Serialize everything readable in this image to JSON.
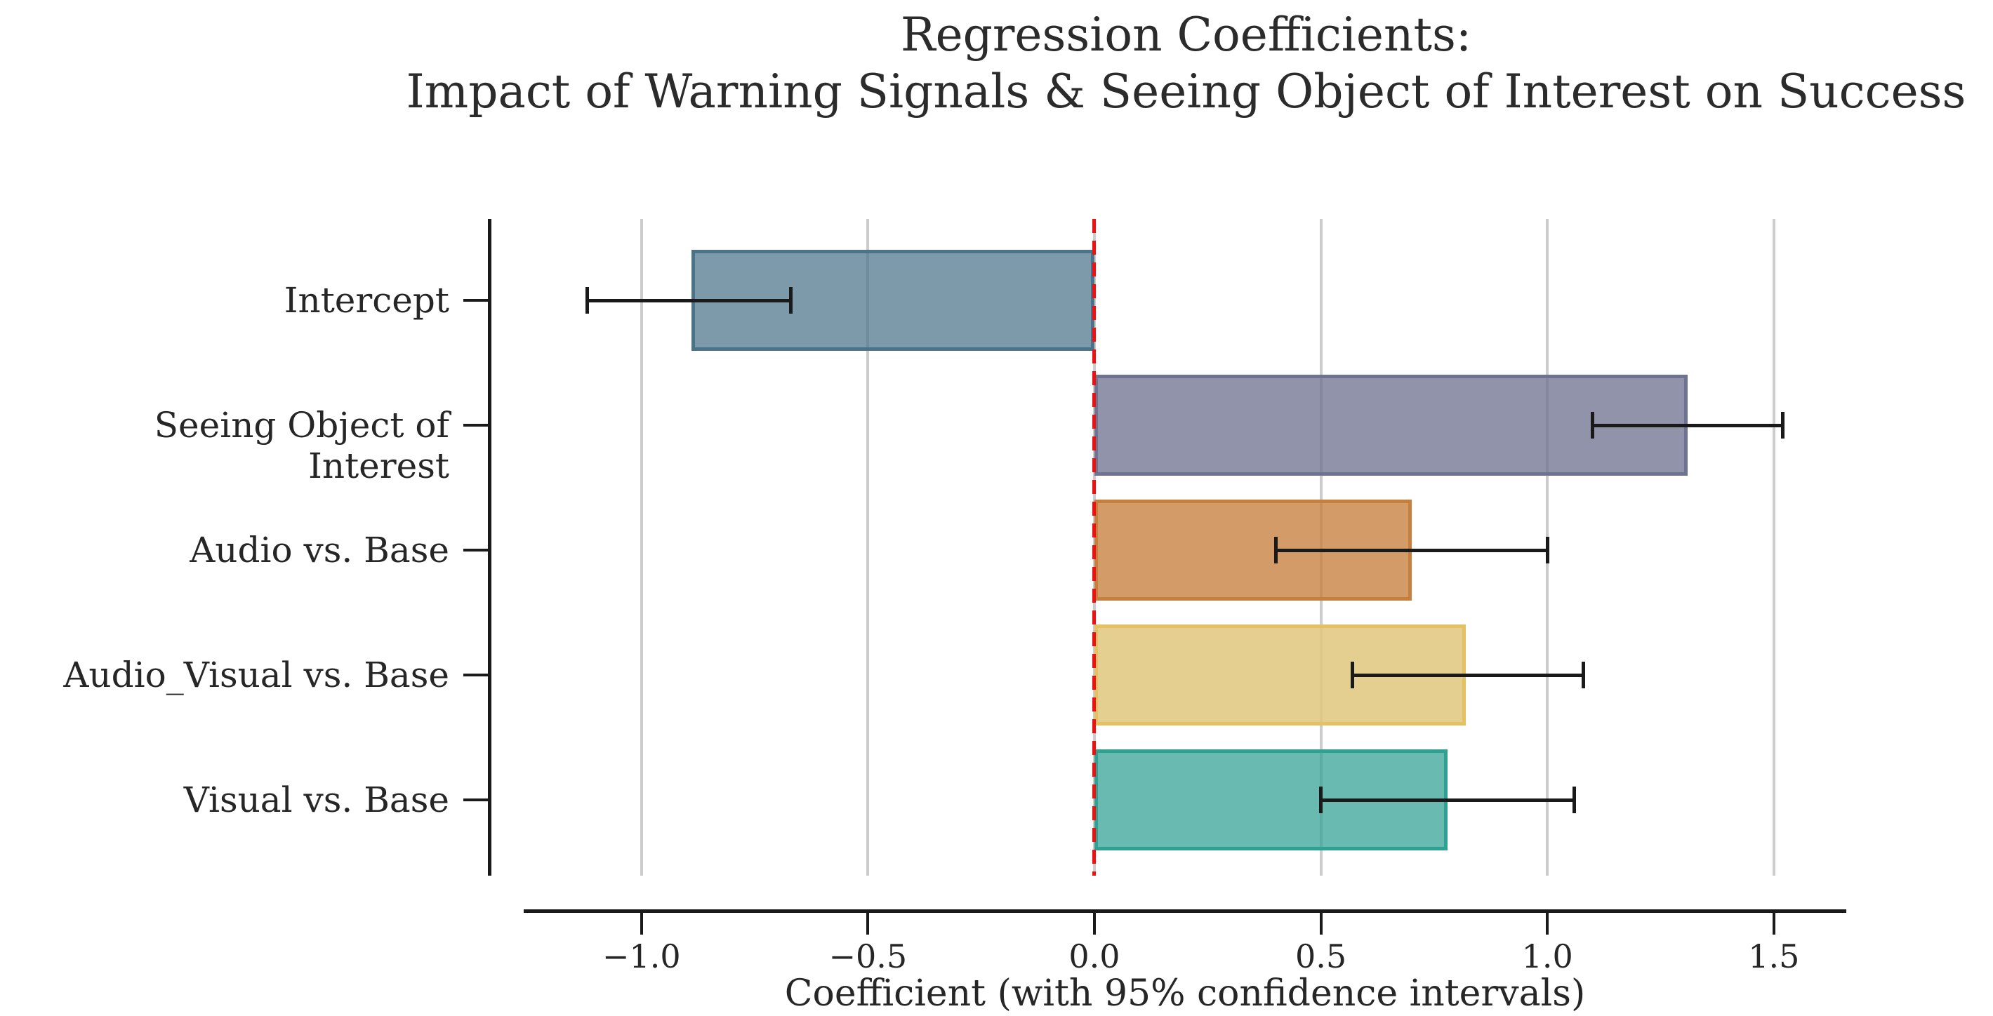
{
  "chart_data": {
    "type": "bar",
    "orientation": "horizontal",
    "title": "Regression Coefficients:\nImpact of Warning Signals & Seeing Object of Interest on Success",
    "xlabel": "Coefficient (with 95% confidence intervals)",
    "categories": [
      "Intercept",
      "Seeing Object of Interest",
      "Audio vs. Base",
      "Audio_Visual vs. Base",
      "Visual vs. Base"
    ],
    "values": [
      -0.89,
      1.31,
      0.7,
      0.82,
      0.78
    ],
    "ci_low": [
      -1.12,
      1.1,
      0.4,
      0.57,
      0.5
    ],
    "ci_high": [
      -0.67,
      1.52,
      1.0,
      1.08,
      1.06
    ],
    "bar_edge_colors": [
      "#4a7389",
      "#6e7390",
      "#c77f3e",
      "#e4c263",
      "#2fa193"
    ],
    "bar_fill_colors": [
      "rgba(74,115,137,0.72)",
      "rgba(110,115,144,0.77)",
      "rgba(199,127,62,0.78)",
      "rgba(223,198,125,0.85)",
      "rgba(47,161,147,0.72)"
    ],
    "xticks": [
      -1.0,
      -0.5,
      0.0,
      0.5,
      1.0,
      1.5
    ],
    "xtick_labels": [
      "−1.0",
      "−0.5",
      "0.0",
      "0.5",
      "1.0",
      "1.5"
    ],
    "xlim": [
      -1.26,
      1.66
    ],
    "zero_line": {
      "x": 0.0,
      "color": "#ee1111",
      "style": "dashed"
    },
    "error_bar_color": "#1a1a1a",
    "gridline_color": "#cccccc",
    "grid": "vertical-only",
    "legend": null,
    "spines": "left-and-bottom-only"
  }
}
